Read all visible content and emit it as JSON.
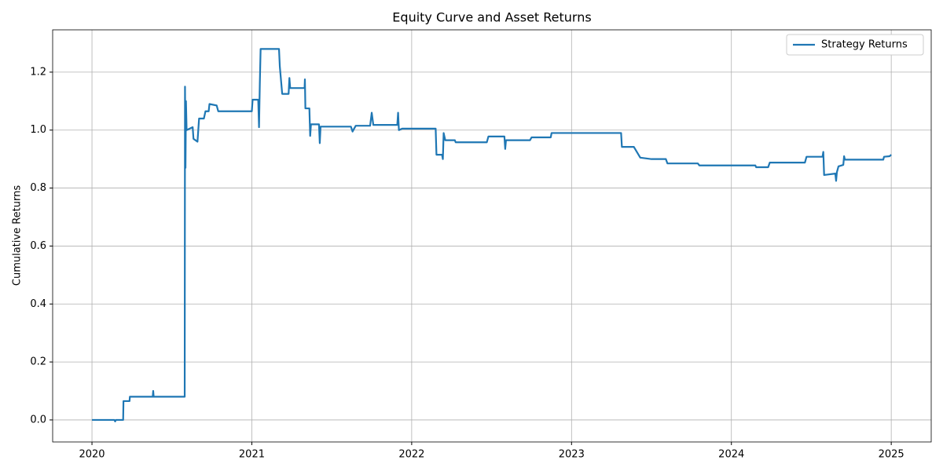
{
  "chart_data": {
    "type": "line",
    "title": "Equity Curve and Asset Returns",
    "ylabel": "Cumulative Returns",
    "x": [
      2020.0,
      2020.14,
      2020.145,
      2020.15,
      2020.195,
      2020.197,
      2020.235,
      2020.237,
      2020.38,
      2020.383,
      2020.386,
      2020.58,
      2020.582,
      2020.585,
      2020.588,
      2020.592,
      2020.63,
      2020.635,
      2020.66,
      2020.67,
      2020.7,
      2020.71,
      2020.73,
      2020.735,
      2020.78,
      2020.79,
      2021.0,
      2021.005,
      2021.04,
      2021.045,
      2021.05,
      2021.055,
      2021.17,
      2021.175,
      2021.19,
      2021.23,
      2021.235,
      2021.24,
      2021.33,
      2021.332,
      2021.335,
      2021.36,
      2021.365,
      2021.37,
      2021.42,
      2021.425,
      2021.43,
      2021.62,
      2021.63,
      2021.65,
      2021.74,
      2021.75,
      2021.76,
      2021.91,
      2021.915,
      2021.92,
      2021.94,
      2022.15,
      2022.155,
      2022.19,
      2022.195,
      2022.2,
      2022.21,
      2022.27,
      2022.275,
      2022.47,
      2022.48,
      2022.58,
      2022.585,
      2022.59,
      2022.74,
      2022.75,
      2022.87,
      2022.875,
      2023.31,
      2023.315,
      2023.39,
      2023.43,
      2023.5,
      2023.59,
      2023.6,
      2023.79,
      2023.8,
      2024.15,
      2024.155,
      2024.23,
      2024.24,
      2024.46,
      2024.47,
      2024.57,
      2024.575,
      2024.58,
      2024.65,
      2024.655,
      2024.66,
      2024.67,
      2024.7,
      2024.705,
      2024.71,
      2024.95,
      2024.955,
      2024.99,
      2025.0
    ],
    "series": [
      {
        "name": "Strategy Returns",
        "color": "#1f77b4",
        "values": [
          0,
          0,
          -0.005,
          0,
          0,
          0.065,
          0.065,
          0.08,
          0.08,
          0.1,
          0.08,
          0.08,
          1.15,
          0.87,
          1.1,
          1.0,
          1.01,
          0.97,
          0.96,
          1.04,
          1.04,
          1.065,
          1.065,
          1.09,
          1.085,
          1.065,
          1.065,
          1.105,
          1.105,
          1.01,
          1.16,
          1.28,
          1.28,
          1.22,
          1.125,
          1.125,
          1.18,
          1.145,
          1.145,
          1.175,
          1.075,
          1.075,
          0.98,
          1.02,
          1.02,
          0.955,
          1.012,
          1.012,
          0.995,
          1.015,
          1.015,
          1.06,
          1.018,
          1.018,
          1.06,
          1.0,
          1.005,
          1.005,
          0.915,
          0.915,
          0.9,
          0.99,
          0.965,
          0.965,
          0.958,
          0.958,
          0.978,
          0.978,
          0.935,
          0.965,
          0.965,
          0.975,
          0.975,
          0.99,
          0.99,
          0.942,
          0.942,
          0.905,
          0.9,
          0.9,
          0.885,
          0.885,
          0.878,
          0.878,
          0.872,
          0.872,
          0.888,
          0.888,
          0.908,
          0.908,
          0.925,
          0.845,
          0.85,
          0.825,
          0.855,
          0.875,
          0.88,
          0.91,
          0.898,
          0.898,
          0.908,
          0.91,
          0.915
        ]
      }
    ],
    "xlim": [
      2019.754,
      2025.25
    ],
    "ylim": [
      -0.076,
      1.346
    ],
    "xticks": [
      2020,
      2021,
      2022,
      2023,
      2024,
      2025
    ],
    "yticks": [
      {
        "value": 0,
        "label": "0.0"
      },
      0.2,
      0.4,
      0.6,
      0.8,
      {
        "value": 1,
        "label": "1.0"
      },
      1.2
    ],
    "grid": true,
    "legend": "upper right"
  }
}
